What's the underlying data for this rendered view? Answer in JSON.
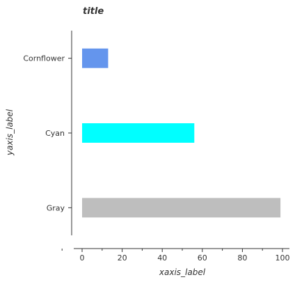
{
  "chart_data": {
    "type": "bar",
    "orientation": "horizontal",
    "title": "title",
    "xlabel": "xaxis_label",
    "ylabel": "yaxis_label",
    "categories": [
      "Gray",
      "Cyan",
      "Cornflower"
    ],
    "values": [
      99,
      56,
      13
    ],
    "colors": [
      "#bebebe",
      "#00ffff",
      "#6495ed"
    ],
    "xlim": [
      0,
      100
    ],
    "xticks": [
      0,
      20,
      40,
      60,
      80,
      100
    ],
    "grid": false,
    "legend": "none"
  }
}
